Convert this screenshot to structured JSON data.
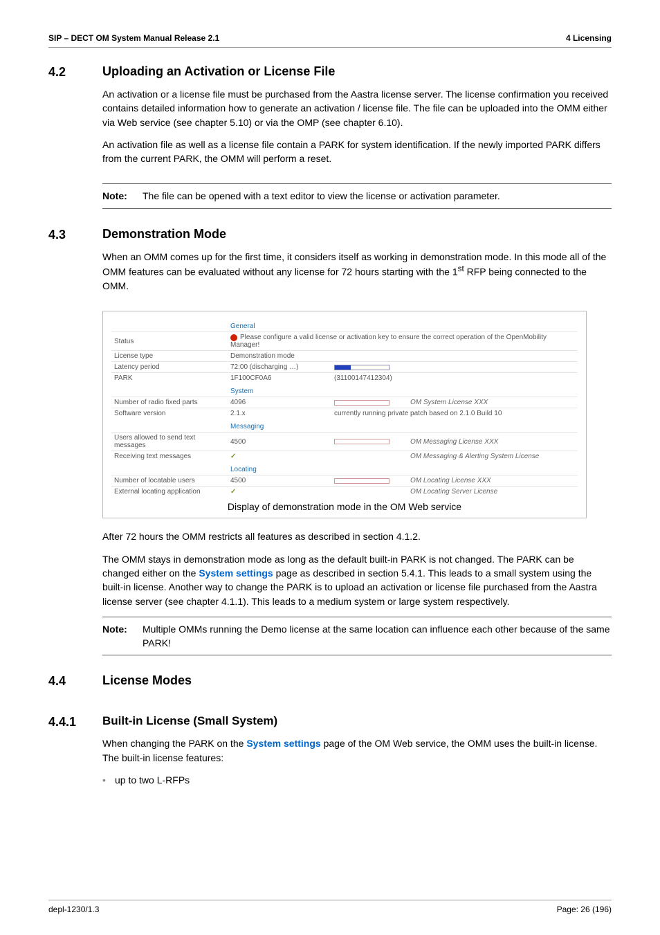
{
  "header": {
    "left": "SIP – DECT OM System Manual Release 2.1",
    "right": "4 Licensing"
  },
  "sec42": {
    "num": "4.2",
    "title": "Uploading an Activation or License File",
    "p1": "An activation or a license file must be purchased from the Aastra license server. The license confirmation you received contains detailed information how to generate an activation / license file. The file can be uploaded into the OMM either via Web service (see chapter 5.10) or via the OMP (see chapter 6.10).",
    "p2": "An activation file as well as a license file contain a PARK for system identification. If the newly imported PARK differs from the current PARK, the OMM will perform a reset.",
    "note_label": "Note:",
    "note_text": "The file can be opened with a text editor to view the license or activation parameter."
  },
  "sec43": {
    "num": "4.3",
    "title": "Demonstration Mode",
    "p1_a": "When an OMM comes up for the first time, it considers itself as working in demonstration mode. In this mode all of the OMM features can be evaluated without any license for 72 hours starting with the 1",
    "p1_sup": "st",
    "p1_b": " RFP being connected to the OMM.",
    "after1": "After 72 hours the OMM restricts all features as described in section 4.1.2.",
    "after2_a": "The OMM stays in demonstration mode as long as the default built-in PARK is not changed. The PARK can be changed either on the ",
    "after2_link": "System settings",
    "after2_b": " page as described in section 5.4.1. This leads to a small system using the built-in license. Another way to change the PARK is to upload an activation or license file purchased from the Aastra license server (see chapter 4.1.1). This leads to a medium system or large system respectively.",
    "note_label": "Note:",
    "note_text": "Multiple OMMs running the Demo license at the same location can influence each other because of the same PARK!"
  },
  "shot": {
    "general_head": "General",
    "status_l": "Status",
    "status_v": "Please configure a valid license or activation key to ensure the correct operation of the OpenMobility Manager!",
    "lictype_l": "License type",
    "lictype_v": "Demonstration mode",
    "latency_l": "Latency period",
    "latency_v": "72:00 (discharging …)",
    "latency_fill_pct": 30,
    "park_l": "PARK",
    "park_v1": "1F100CF0A6",
    "park_v2": "(31100147412304)",
    "system_head": "System",
    "nrfp_l": "Number of radio fixed parts",
    "nrfp_v": "4096",
    "nrfp_lic": "OM System License XXX",
    "swv_l": "Software version",
    "swv_v": "2.1.x",
    "swv_note": "currently running private patch based on 2.1.0 Build 10",
    "msg_head": "Messaging",
    "uasend_l": "Users allowed to send text messages",
    "uasend_v": "4500",
    "uasend_lic": "OM Messaging License XXX",
    "recv_l": "Receiving text messages",
    "recv_lic": "OM Messaging & Alerting System License",
    "loc_head": "Locating",
    "nloc_l": "Number of locatable users",
    "nloc_v": "4500",
    "nloc_lic": "OM Locating License XXX",
    "ext_l": "External locating application",
    "ext_lic": "OM Locating Server License",
    "caption": "Display of demonstration mode in the OM Web service"
  },
  "sec44": {
    "num": "4.4",
    "title": "License Modes"
  },
  "sec441": {
    "num": "4.4.1",
    "title": "Built-in License (Small System)",
    "p1_a": "When changing the PARK on the ",
    "p1_link": "System settings",
    "p1_b": " page of the OM Web service, the OMM uses the built-in license. The built-in license features:",
    "bullet1": "up to two L-RFPs"
  },
  "footer": {
    "left": "depl-1230/1.3",
    "right": "Page: 26 (196)"
  },
  "colors": {
    "link": "#0066cc",
    "shot_head": "#1a6fb0",
    "bar_fill": "#2040c0",
    "warn": "#d02000",
    "check": "#7a9a2e"
  }
}
